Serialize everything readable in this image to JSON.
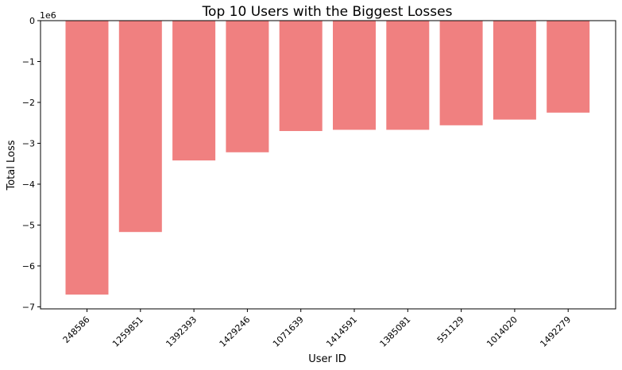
{
  "chart_data": {
    "type": "bar",
    "title": "Top 10 Users with the Biggest Losses",
    "xlabel": "User ID",
    "ylabel": "Total Loss",
    "offset_label": "1e6",
    "categories": [
      "248586",
      "1259851",
      "1392393",
      "1429246",
      "1071639",
      "1414591",
      "1385081",
      "551129",
      "1014020",
      "1492279"
    ],
    "values": [
      -6700000,
      -5170000,
      -3420000,
      -3220000,
      -2700000,
      -2670000,
      -2670000,
      -2560000,
      -2420000,
      -2250000
    ],
    "ylim": [
      -7050000,
      0
    ],
    "yticks": [
      0,
      -1000000,
      -2000000,
      -3000000,
      -4000000,
      -5000000,
      -6000000,
      -7000000
    ],
    "ytick_labels": [
      "0",
      "−1",
      "−2",
      "−3",
      "−4",
      "−5",
      "−6",
      "−7"
    ],
    "bar_color": "#f08080",
    "grid": false
  }
}
